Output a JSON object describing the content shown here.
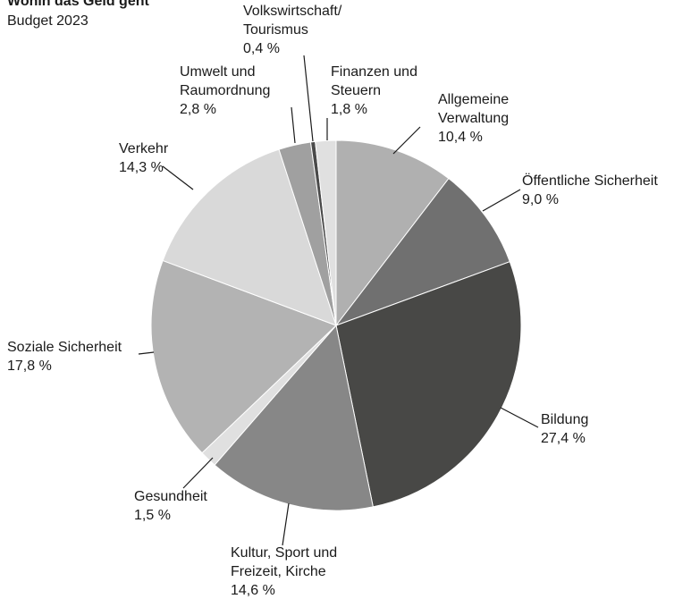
{
  "chart_data": {
    "type": "pie",
    "title": "Wohin das Geld geht",
    "subtitle": "Budget 2023",
    "categories": [
      "Allgemeine\nVerwaltung",
      "Öffentliche Sicherheit",
      "Bildung",
      "Kultur, Sport und\nFreizeit, Kirche",
      "Gesundheit",
      "Soziale Sicherheit",
      "Verkehr",
      "Umwelt und\nRaumordnung",
      "Volkswirtschaft/\nTourismus",
      "Finanzen und\nSteuern"
    ],
    "values": [
      10.4,
      9.0,
      27.4,
      14.6,
      1.5,
      17.8,
      14.3,
      2.8,
      0.4,
      1.8
    ],
    "value_labels": [
      "10,4 %",
      "9,0 %",
      "27,4 %",
      "14,6 %",
      "1,5 %",
      "17,8 %",
      "14,3 %",
      "2,8 %",
      "0,4 %",
      "1,8 %"
    ],
    "colors": [
      "#b0b0b0",
      "#707070",
      "#484846",
      "#878787",
      "#e0e0e0",
      "#b3b3b3",
      "#d9d9d9",
      "#a0a0a0",
      "#4a4a4a",
      "#e0e0e0"
    ]
  }
}
